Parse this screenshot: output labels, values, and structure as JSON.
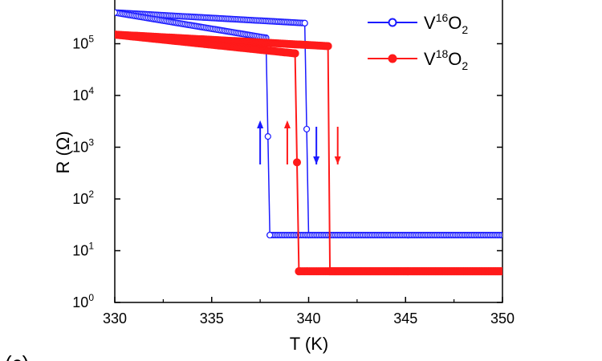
{
  "panel_label": "(c)",
  "chart_data": {
    "type": "line",
    "title": "",
    "xlabel": "T (K)",
    "ylabel": "R (Ω)",
    "xlim": [
      330,
      350
    ],
    "ylim_log10": [
      0,
      6
    ],
    "y_scale": "log",
    "xticks": [
      330,
      335,
      340,
      345,
      350
    ],
    "yticks": [
      {
        "base": "10",
        "exp": "0"
      },
      {
        "base": "10",
        "exp": "1"
      },
      {
        "base": "10",
        "exp": "2"
      },
      {
        "base": "10",
        "exp": "3"
      },
      {
        "base": "10",
        "exp": "4"
      },
      {
        "base": "10",
        "exp": "5"
      }
    ],
    "legend_position": "top-right",
    "series": [
      {
        "name_base": "V",
        "name_sup": "16",
        "name_mid": "O",
        "name_sub": "2",
        "color": "#1a1aff",
        "marker": "open-circle",
        "heating": {
          "x": [
            330,
            339.8,
            340.0,
            350
          ],
          "y": [
            400000,
            250000,
            20,
            20
          ]
        },
        "cooling": {
          "x": [
            350,
            338.0,
            337.8,
            330
          ],
          "y": [
            20,
            20,
            130000,
            400000
          ]
        }
      },
      {
        "name_base": "V",
        "name_sup": "18",
        "name_mid": "O",
        "name_sub": "2",
        "color": "#ff1a1a",
        "marker": "filled-circle",
        "heating": {
          "x": [
            330,
            341.0,
            341.1,
            350
          ],
          "y": [
            150000,
            90000,
            4,
            4
          ]
        },
        "cooling": {
          "x": [
            350,
            339.5,
            339.3,
            330
          ],
          "y": [
            4,
            4,
            65000,
            150000
          ]
        }
      }
    ],
    "arrows": [
      {
        "x": 337.5,
        "direction": "up",
        "color": "#1a1aff"
      },
      {
        "x": 338.9,
        "direction": "up",
        "color": "#ff1a1a"
      },
      {
        "x": 340.4,
        "direction": "down",
        "color": "#1a1aff"
      },
      {
        "x": 341.5,
        "direction": "down",
        "color": "#ff1a1a"
      }
    ]
  }
}
